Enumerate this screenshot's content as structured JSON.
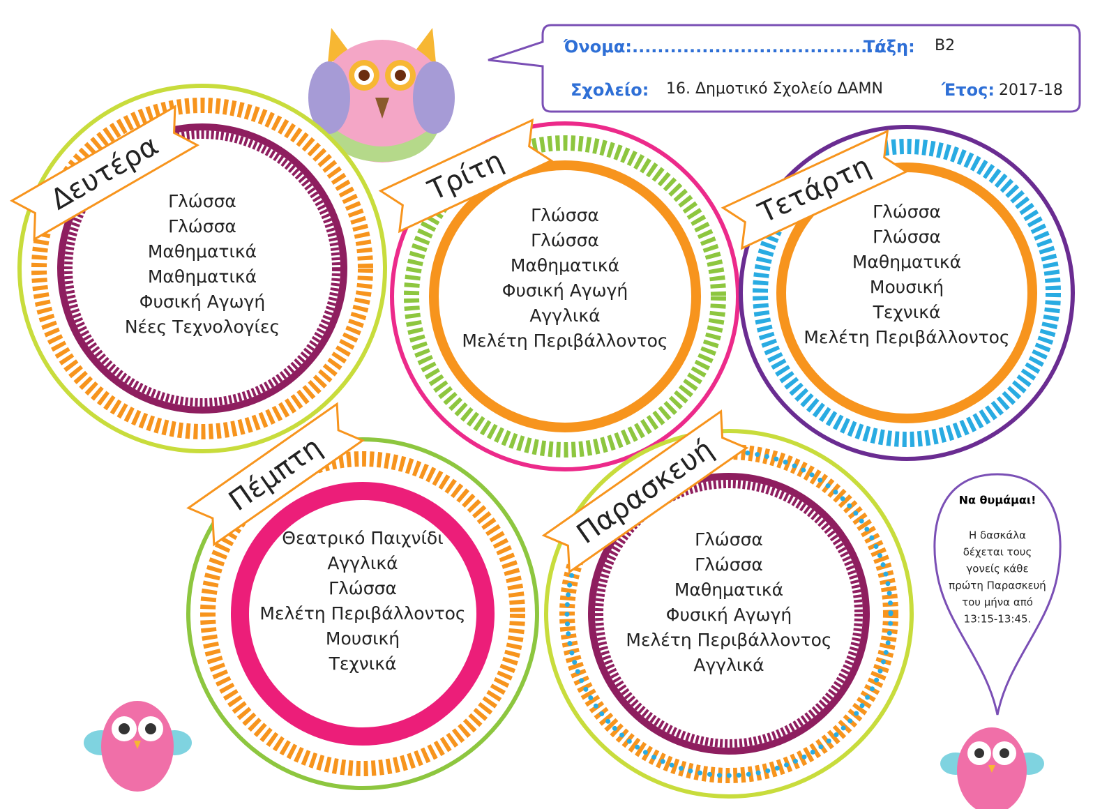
{
  "header": {
    "name_label": "Όνομα:........................................",
    "class_label": "Τάξη:",
    "class_value": "Β2",
    "school_label": "Σχολείο:",
    "school_value": "16. Δημοτικό Σχολείο ΔΑΜΝ",
    "year_label": "Έτος:",
    "year_value": "2017-18"
  },
  "days": [
    {
      "name": "Δευτέρα",
      "subjects": [
        "Γλώσσα",
        "Γλώσσα",
        "Μαθηματικά",
        "Μαθηματικά",
        "Φυσική Αγωγή",
        "Νέες Τεχνολογίες"
      ]
    },
    {
      "name": "Τρίτη",
      "subjects": [
        "Γλώσσα",
        "Γλώσσα",
        "Μαθηματικά",
        "Φυσική Αγωγή",
        "Αγγλικά",
        "Μελέτη Περιβάλλοντος"
      ]
    },
    {
      "name": "Τετάρτη",
      "subjects": [
        "Γλώσσα",
        "Γλώσσα",
        "Μαθηματικά",
        "Μουσική",
        "Τεχνικά",
        "Μελέτη Περιβάλλοντος"
      ]
    },
    {
      "name": "Πέμπτη",
      "subjects": [
        "Θεατρικό Παιχνίδι",
        "Αγγλικά",
        "Γλώσσα",
        "Μελέτη Περιβάλλοντος",
        "Μουσική",
        "Τεχνικά"
      ]
    },
    {
      "name": "Παρασκευή",
      "subjects": [
        "Γλώσσα",
        "Γλώσσα",
        "Μαθηματικά",
        "Φυσική Αγωγή",
        "Μελέτη Περιβάλλοντος",
        "Αγγλικά"
      ]
    }
  ],
  "reminder": {
    "title": "Να θυμάμαι!",
    "lines": [
      "Η δασκάλα",
      "δέχεται τους",
      "γονείς κάθε",
      "πρώτη Παρασκευή",
      "του μήνα από",
      "13:15-13:45."
    ]
  }
}
